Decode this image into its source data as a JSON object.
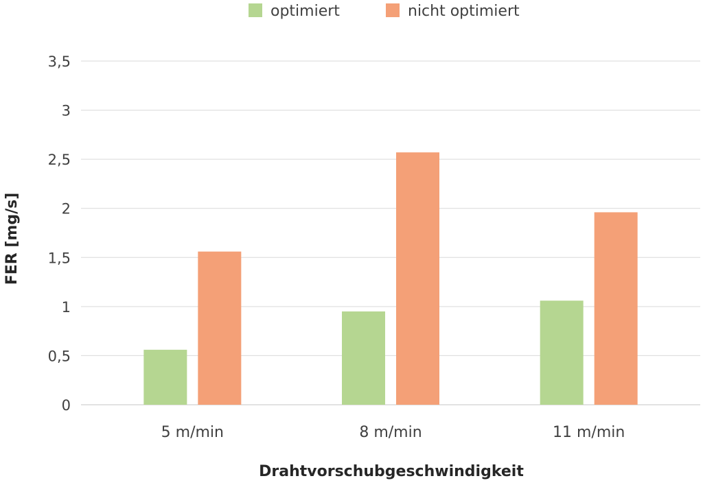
{
  "chart_data": {
    "type": "bar",
    "title": "",
    "xlabel": "Drahtvorschubgeschwindigkeit",
    "ylabel": "FER [mg/s]",
    "categories": [
      "5 m/min",
      "8 m/min",
      "11 m/min"
    ],
    "series": [
      {
        "name": "optimiert",
        "color": "#b5d691",
        "values": [
          0.56,
          0.95,
          1.06
        ]
      },
      {
        "name": "nicht optimiert",
        "color": "#f4a077",
        "values": [
          1.56,
          2.57,
          1.96
        ]
      }
    ],
    "ylim": [
      0,
      3.5
    ],
    "yticks": [
      0,
      0.5,
      1,
      1.5,
      2,
      2.5,
      3,
      3.5
    ],
    "ytick_labels": [
      "0",
      "0,5",
      "1",
      "1,5",
      "2",
      "2,5",
      "3",
      "3,5"
    ],
    "grid": true,
    "legend_position": "top",
    "colors": {
      "grid": "#d9d9d9",
      "text": "#404040"
    }
  }
}
